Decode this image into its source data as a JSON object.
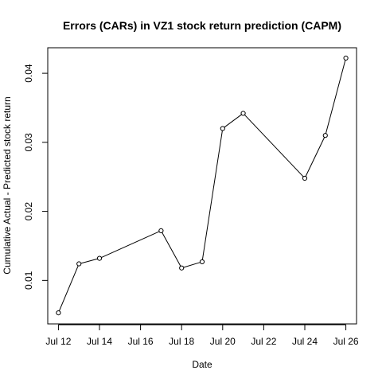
{
  "chart_data": {
    "type": "line",
    "title": "Errors (CARs) in VZ1 stock return prediction (CAPM)",
    "xlabel": "Date",
    "ylabel": "Cumulative Actual - Predicted stock return",
    "x_tick_labels": [
      "Jul 12",
      "Jul 14",
      "Jul 16",
      "Jul 18",
      "Jul 20",
      "Jul 22",
      "Jul 24",
      "Jul 26"
    ],
    "x_tick_days": [
      12,
      14,
      16,
      18,
      20,
      22,
      24,
      26
    ],
    "y_tick_labels": [
      "0.01",
      "0.02",
      "0.03",
      "0.04"
    ],
    "y_tick_values": [
      0.01,
      0.02,
      0.03,
      0.04
    ],
    "xlim": [
      11.48,
      26.52
    ],
    "ylim": [
      0.0037,
      0.0437
    ],
    "grid": false,
    "series": [
      {
        "x": [
          "Jul 12",
          "Jul 13",
          "Jul 14",
          "Jul 17",
          "Jul 18",
          "Jul 19",
          "Jul 20",
          "Jul 21",
          "Jul 24",
          "Jul 25",
          "Jul 26"
        ],
        "x_days": [
          12,
          13,
          14,
          17,
          18,
          19,
          20,
          21,
          24,
          25,
          26
        ],
        "values": [
          0.0053,
          0.0124,
          0.0132,
          0.0172,
          0.0118,
          0.0127,
          0.032,
          0.0342,
          0.0248,
          0.031,
          0.0422
        ]
      }
    ]
  }
}
